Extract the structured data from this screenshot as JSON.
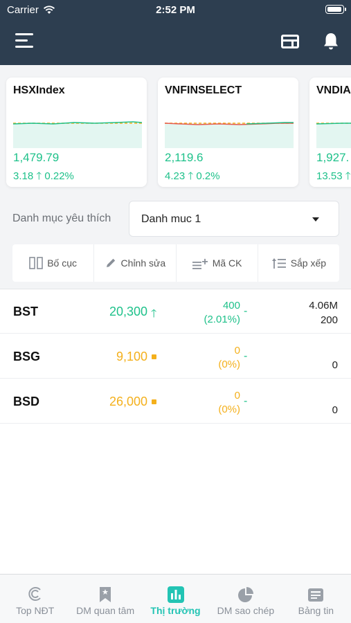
{
  "status_bar": {
    "carrier": "Carrier",
    "time": "2:52 PM"
  },
  "header": {
    "icons": [
      "menu-icon",
      "price-board-icon",
      "bell-icon"
    ]
  },
  "indices": [
    {
      "name": "HSXIndex",
      "value": "1,479.79",
      "change": "3.18",
      "percent": "0.22%",
      "color": "#1ec18a"
    },
    {
      "name": "VNFINSELECT",
      "value": "2,119.6",
      "change": "4.23",
      "percent": "0.2%",
      "color": "#1ec18a"
    },
    {
      "name": "VNDIAMOND",
      "value": "1,927.",
      "change": "13.53",
      "percent": "",
      "color": "#1ec18a"
    }
  ],
  "favorites": {
    "label": "Danh mục yêu thích",
    "selected": "Danh muc 1"
  },
  "toolbar": {
    "layout": "Bố cục",
    "edit": "Chỉnh sửa",
    "add_symbol": "Mã CK",
    "sort": "Sắp xếp"
  },
  "stocks": [
    {
      "symbol": "BST",
      "price": "20,300",
      "change": "400",
      "percent": "(2.01%)",
      "volume": "4.06M",
      "last_volume": "200",
      "trend": "up"
    },
    {
      "symbol": "BSG",
      "price": "9,100",
      "change": "0",
      "percent": "(0%)",
      "volume": "",
      "last_volume": "0",
      "trend": "ref"
    },
    {
      "symbol": "BSD",
      "price": "26,000",
      "change": "0",
      "percent": "(0%)",
      "volume": "",
      "last_volume": "0",
      "trend": "ref"
    }
  ],
  "tabs": [
    {
      "label": "Top NĐT",
      "active": false
    },
    {
      "label": "DM quan tâm",
      "active": false
    },
    {
      "label": "Thị trường",
      "active": true
    },
    {
      "label": "DM sao chép",
      "active": false
    },
    {
      "label": "Bảng tin",
      "active": false
    }
  ],
  "colors": {
    "header": "#2d3e50",
    "up": "#1ec18a",
    "reference": "#f4b01c",
    "accent": "#23c4b4"
  }
}
